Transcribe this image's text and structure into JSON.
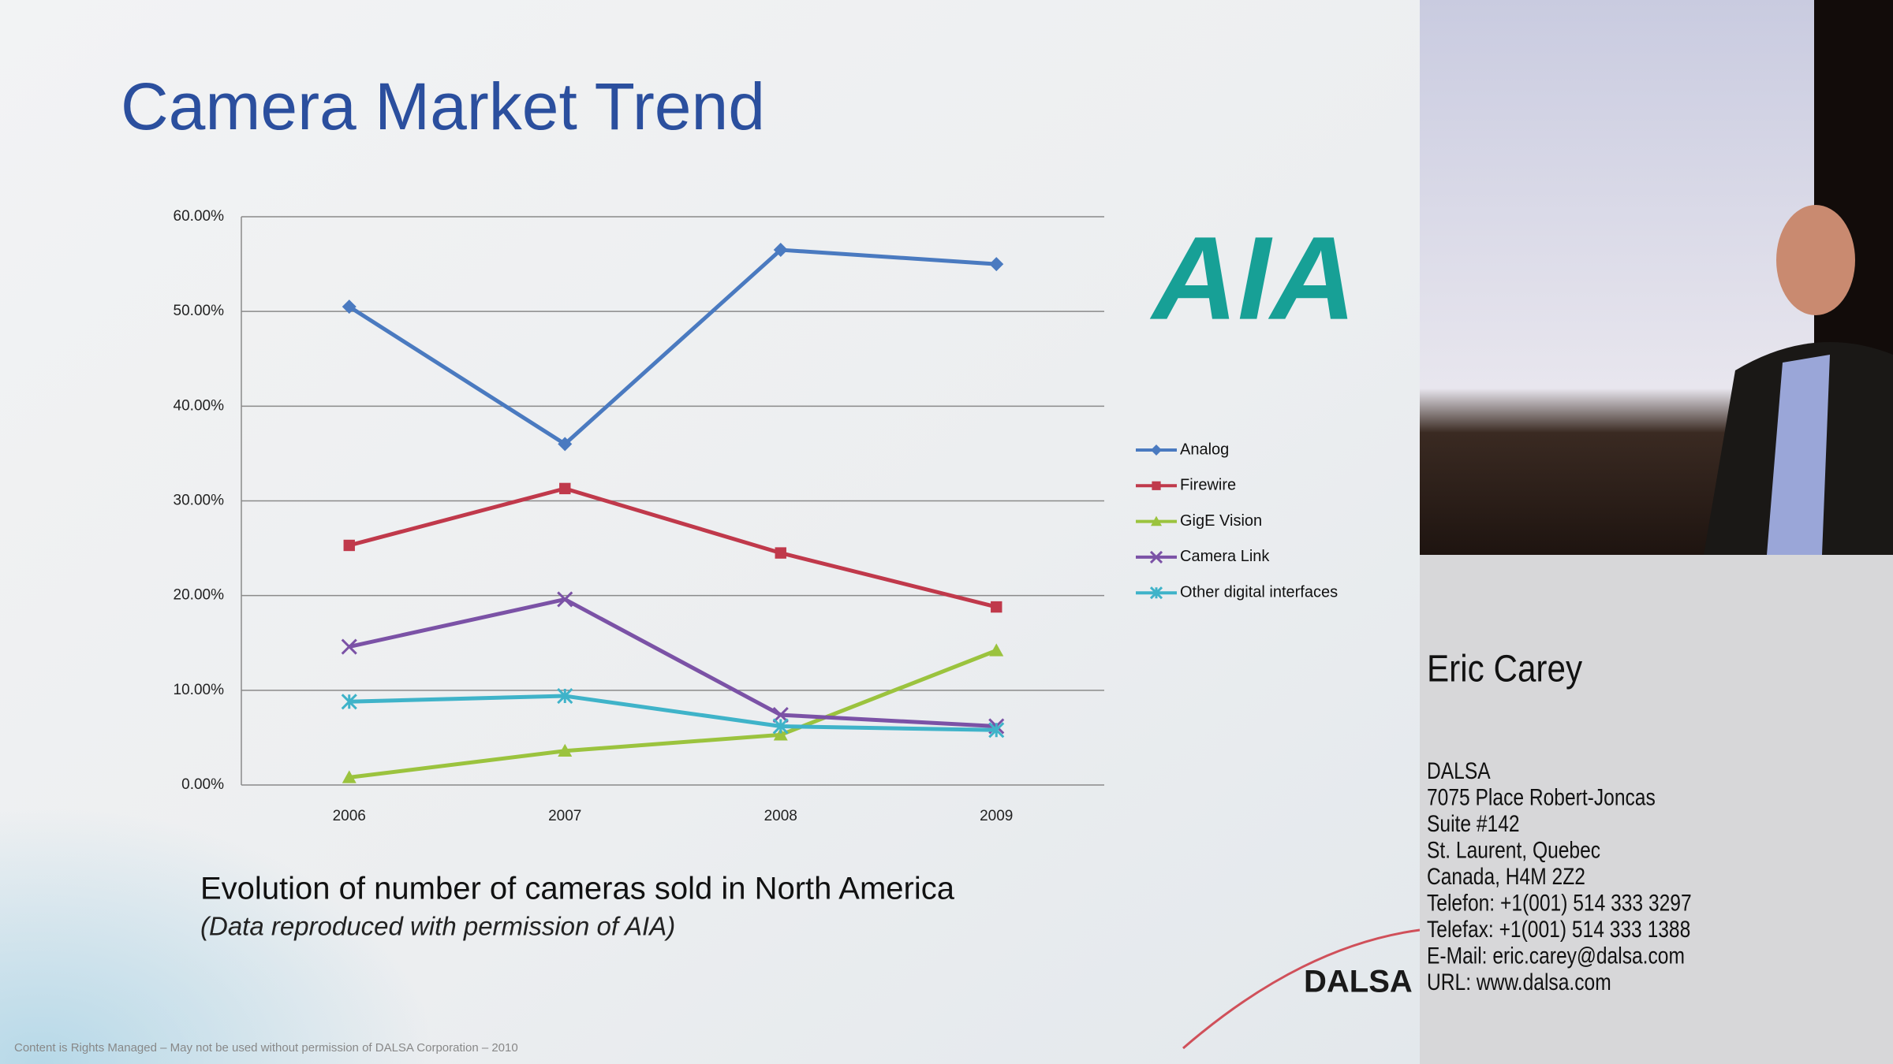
{
  "chart_data": {
    "type": "line",
    "title": "Camera Market Trend",
    "subtitle": "Evolution of number of cameras sold in North America",
    "caption": "(Data reproduced with permission of AIA)",
    "categories": [
      "2006",
      "2007",
      "2008",
      "2009"
    ],
    "series": [
      {
        "name": "Analog",
        "color": "#4a7ac0",
        "marker": "diamond",
        "values": [
          50.5,
          36,
          56.5,
          55
        ]
      },
      {
        "name": "Firewire",
        "color": "#c0394b",
        "marker": "square",
        "values": [
          25.3,
          31.3,
          24.5,
          18.8
        ]
      },
      {
        "name": "GigE Vision",
        "color": "#9bc33e",
        "marker": "triangle",
        "values": [
          0.8,
          3.6,
          5.3,
          14.2
        ]
      },
      {
        "name": "Camera Link",
        "color": "#7b52a6",
        "marker": "x",
        "values": [
          14.6,
          19.6,
          7.4,
          6.2
        ]
      },
      {
        "name": "Other digital interfaces",
        "color": "#3fb3c9",
        "marker": "star",
        "values": [
          8.8,
          9.4,
          6.2,
          5.8
        ]
      }
    ],
    "ylim": [
      0,
      60
    ],
    "yticks": [
      {
        "value": 0,
        "label": "0.00%"
      },
      {
        "value": 10,
        "label": "10.00%"
      },
      {
        "value": 20,
        "label": "20.00%"
      },
      {
        "value": 30,
        "label": "30.00%"
      },
      {
        "value": 40,
        "label": "40.00%"
      },
      {
        "value": 50,
        "label": "50.00%"
      },
      {
        "value": 60,
        "label": "60.00%"
      }
    ],
    "grid": true,
    "legend": "right"
  },
  "slide": {
    "logo_aia": "AIA",
    "logo_dalsa": "DALSA",
    "footer": "Content is Rights Managed – May not be used without permission of DALSA Corporation – 2010"
  },
  "speaker": {
    "name": "Eric Carey",
    "address": [
      "DALSA",
      "7075 Place Robert-Joncas",
      "Suite #142",
      "St. Laurent, Quebec",
      "Canada, H4M 2Z2",
      "Telefon: +1(001) 514 333 3297",
      "Telefax: +1(001) 514 333 1388",
      "E-Mail: eric.carey@dalsa.com",
      "URL: www.dalsa.com"
    ]
  }
}
